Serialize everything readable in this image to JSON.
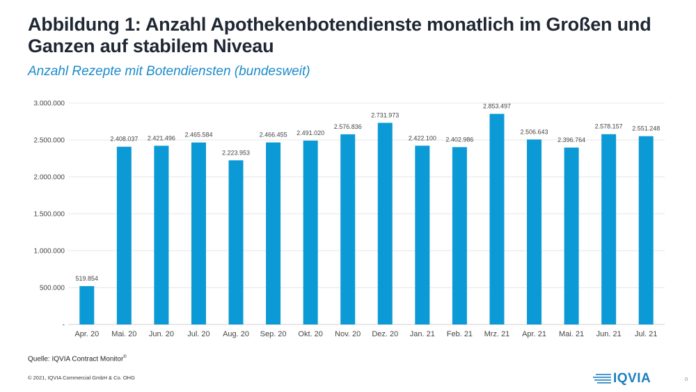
{
  "header": {
    "title": "Abbildung 1: Anzahl Apothekenbotendienste monatlich im Großen und Ganzen auf stabilem Niveau",
    "subtitle": "Anzahl Rezepte mit Botendiensten (bundesweit)"
  },
  "chart_data": {
    "type": "bar",
    "categories": [
      "Apr. 20",
      "Mai. 20",
      "Jun. 20",
      "Jul. 20",
      "Aug. 20",
      "Sep. 20",
      "Okt. 20",
      "Nov. 20",
      "Dez. 20",
      "Jan. 21",
      "Feb. 21",
      "Mrz. 21",
      "Apr. 21",
      "Mai. 21",
      "Jun. 21",
      "Jul. 21"
    ],
    "values": [
      519854,
      2408037,
      2421496,
      2465584,
      2223953,
      2466455,
      2491020,
      2576836,
      2731973,
      2422100,
      2402986,
      2853497,
      2506643,
      2396764,
      2578157,
      2551248
    ],
    "value_labels": [
      "519.854",
      "2.408.037",
      "2.421.496",
      "2.465.584",
      "2.223.953",
      "2.466.455",
      "2.491.020",
      "2.576.836",
      "2.731.973",
      "2.422.100",
      "2.402.986",
      "2.853.497",
      "2.506.643",
      "2.396.764",
      "2.578.157",
      "2.551.248"
    ],
    "ylim": [
      0,
      3000000
    ],
    "yticks": [
      0,
      500000,
      1000000,
      1500000,
      2000000,
      2500000,
      3000000
    ],
    "ytick_labels": [
      "-",
      "500.000",
      "1.000.000",
      "1.500.000",
      "2.000.000",
      "2.500.000",
      "3.000.000"
    ],
    "grid": true,
    "bar_color": "#0b9ad6",
    "xlabel": "",
    "ylabel": ""
  },
  "footer": {
    "source": "Quelle: IQVIA  Contract Monitor",
    "source_mark": "®",
    "copyright": "© 2021, IQVIA Commercial GmbH & Co. OHG",
    "logo_text": "IQVIA",
    "page_number": "0"
  },
  "colors": {
    "title": "#1f2733",
    "subtitle": "#1b8bcb",
    "bar": "#0b9ad6",
    "logo": "#1b7fbf"
  }
}
